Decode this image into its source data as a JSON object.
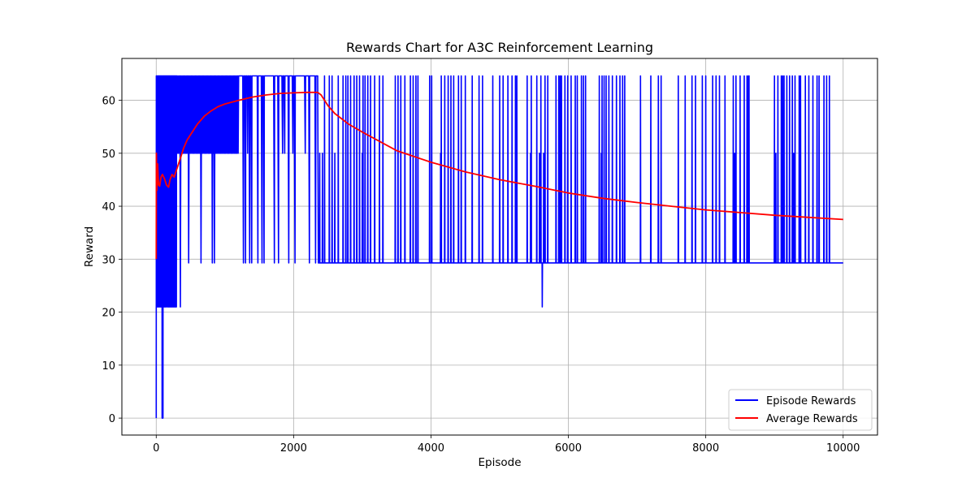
{
  "chart_data": {
    "type": "line",
    "title": "Rewards Chart for A3C Reinforcement Learning",
    "xlabel": "Episode",
    "ylabel": "Reward",
    "xlim": [
      -500,
      10500
    ],
    "ylim": [
      -3.2,
      67.9
    ],
    "xticks": [
      0,
      2000,
      4000,
      6000,
      8000,
      10000
    ],
    "yticks": [
      0,
      10,
      20,
      30,
      40,
      50,
      60
    ],
    "grid": true,
    "legend_position": "lower-right",
    "levels": {
      "low": 29.3,
      "high": 64.6,
      "mid": 50.0,
      "early_low": 21.0
    },
    "series": [
      {
        "name": "Episode Rewards",
        "color": "#0000ff",
        "segments": [
          {
            "x_range": [
              0,
              20
            ],
            "values": [
              0,
              64.6,
              21.0,
              50.0,
              64.6
            ]
          },
          {
            "x_range": [
              20,
              300
            ],
            "oscillates_between": [
              21.0,
              64.6
            ]
          },
          {
            "x_range": [
              300,
              1200
            ],
            "oscillates_between": [
              50.0,
              64.6
            ],
            "dips_to": 29.3
          },
          {
            "x_range": [
              1200,
              2350
            ],
            "baseline": 64.6,
            "dips_to": 29.3
          },
          {
            "x_range": [
              2350,
              10000
            ],
            "baseline": 29.3,
            "spikes_to": 64.6
          }
        ],
        "spike_episodes": [
          2450,
          2520,
          2560,
          2650,
          2720,
          2760,
          2790,
          2830,
          2880,
          2920,
          2960,
          3010,
          3040,
          3080,
          3120,
          3180,
          3250,
          3300,
          3480,
          3520,
          3560,
          3620,
          3700,
          3740,
          3780,
          3810,
          3980,
          4010,
          4150,
          4200,
          4250,
          4290,
          4330,
          4400,
          4440,
          4500,
          4600,
          4700,
          4750,
          4900,
          5000,
          5050,
          5120,
          5180,
          5230,
          5250,
          5400,
          5460,
          5540,
          5600,
          5660,
          5700,
          5820,
          5860,
          5880,
          5900,
          5950,
          5990,
          6040,
          6100,
          6130,
          6190,
          6220,
          6250,
          6450,
          6490,
          6520,
          6550,
          6590,
          6640,
          6700,
          6750,
          6790,
          6820,
          7050,
          7200,
          7310,
          7350,
          7600,
          7700,
          7800,
          7850,
          7950,
          8000,
          8100,
          8150,
          8200,
          8280,
          8400,
          8440,
          8500,
          8560,
          8600,
          8620,
          8630,
          9000,
          9050,
          9100,
          9120,
          9140,
          9180,
          9220,
          9260,
          9300,
          9360,
          9380,
          9450,
          9500,
          9560,
          9620,
          9650,
          9720,
          9760,
          9800
        ],
        "mid_spike_episodes": [
          2380,
          2420,
          2600,
          3000,
          4140,
          5450,
          5580,
          5640,
          6480,
          8420,
          9020,
          9280,
          9500
        ],
        "low_dips": [
          {
            "x": 5620,
            "y": 21.0
          }
        ]
      },
      {
        "name": "Average Rewards",
        "color": "#ff0000",
        "x": [
          0,
          3,
          6,
          10,
          20,
          35,
          50,
          70,
          90,
          120,
          150,
          180,
          200,
          230,
          260,
          300,
          350,
          400,
          450,
          500,
          600,
          700,
          800,
          900,
          1000,
          1200,
          1400,
          1600,
          1800,
          2000,
          2200,
          2350,
          2400,
          2500,
          2600,
          2800,
          3000,
          3500,
          4000,
          4500,
          5000,
          5500,
          6000,
          6500,
          7000,
          7500,
          8000,
          8500,
          9000,
          9500,
          10000
        ],
        "y": [
          30.0,
          50.0,
          45.0,
          43.0,
          48.0,
          44.0,
          43.8,
          45.5,
          46.0,
          45.2,
          44.0,
          43.6,
          45.0,
          46.0,
          45.5,
          47.0,
          49.0,
          51.0,
          52.5,
          53.5,
          55.5,
          57.0,
          58.0,
          58.8,
          59.3,
          60.0,
          60.6,
          61.0,
          61.3,
          61.4,
          61.5,
          61.5,
          61.0,
          59.0,
          57.5,
          55.5,
          54.0,
          50.5,
          48.3,
          46.5,
          45.0,
          43.8,
          42.5,
          41.5,
          40.7,
          40.0,
          39.3,
          38.8,
          38.3,
          37.9,
          37.5
        ]
      }
    ]
  }
}
